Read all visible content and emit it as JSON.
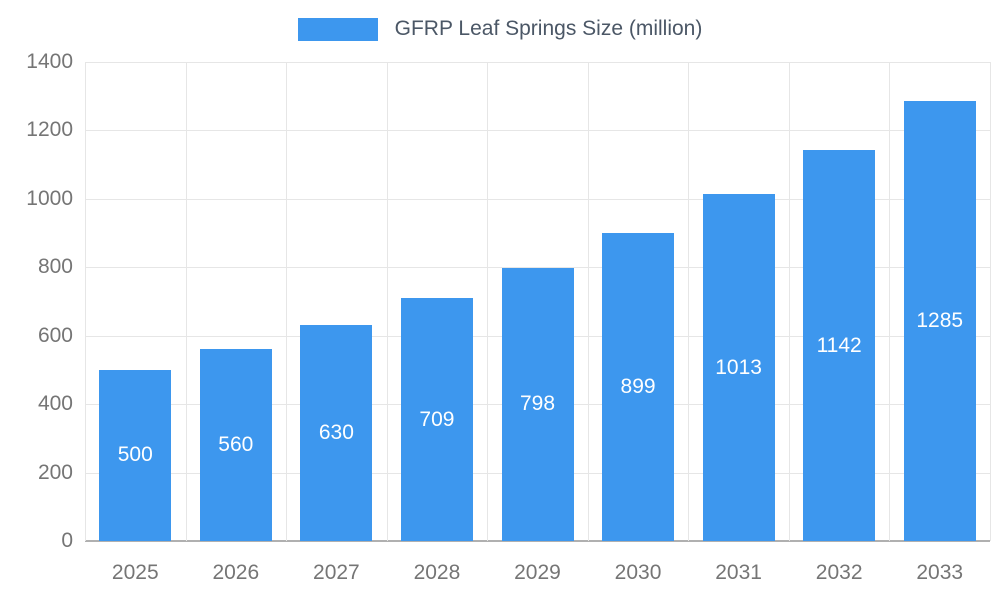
{
  "legend": {
    "label": "GFRP Leaf Springs Size (million)"
  },
  "chart_data": {
    "type": "bar",
    "title": "GFRP Leaf Springs Size (million)",
    "categories": [
      "2025",
      "2026",
      "2027",
      "2028",
      "2029",
      "2030",
      "2031",
      "2032",
      "2033"
    ],
    "values": [
      500,
      560,
      630,
      709,
      798,
      899,
      1013,
      1142,
      1285
    ],
    "bar_labels": [
      "500",
      "560",
      "630",
      "709",
      "798",
      "899",
      "1013",
      "1142",
      "1285"
    ],
    "xlabel": "",
    "ylabel": "",
    "ylim": [
      0,
      1400
    ],
    "yticks": [
      0,
      200,
      400,
      600,
      800,
      1000,
      1200,
      1400
    ],
    "grid": true,
    "legend_position": "top-center",
    "colors": {
      "bar": "#3d97ee",
      "bar_label": "#ffffff",
      "axis_text": "#757575",
      "gridline": "#e6e6e6",
      "axis_line": "#b0b0b0",
      "legend_text": "#4b5766",
      "background": "#ffffff"
    }
  }
}
